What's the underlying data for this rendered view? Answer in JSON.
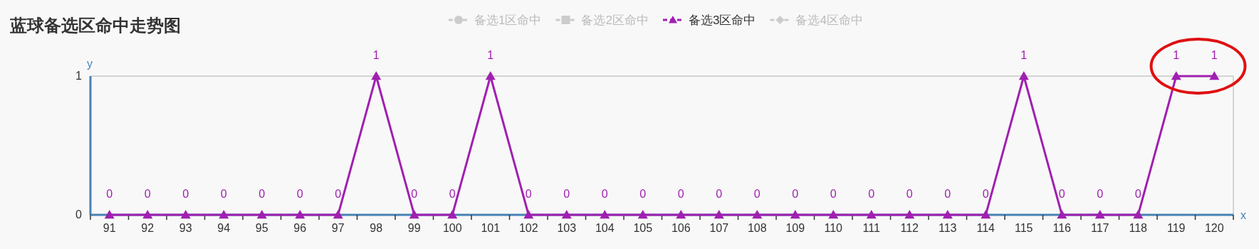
{
  "chart_data": {
    "type": "line",
    "title": "蓝球备选区命中走势图",
    "xlabel": "x",
    "ylabel": "y",
    "categories": [
      "91",
      "92",
      "93",
      "94",
      "95",
      "96",
      "97",
      "98",
      "99",
      "100",
      "101",
      "102",
      "103",
      "104",
      "105",
      "106",
      "107",
      "108",
      "109",
      "110",
      "111",
      "112",
      "113",
      "114",
      "115",
      "116",
      "117",
      "118",
      "119",
      "120"
    ],
    "series": [
      {
        "name": "备选1区命中",
        "color": "#cccccc",
        "marker": "circle",
        "values": [
          null,
          null,
          null,
          null,
          null,
          null,
          null,
          null,
          null,
          null,
          null,
          null,
          null,
          null,
          null,
          null,
          null,
          null,
          null,
          null,
          null,
          null,
          null,
          null,
          null,
          null,
          null,
          null,
          null,
          null
        ]
      },
      {
        "name": "备选2区命中",
        "color": "#cccccc",
        "marker": "square",
        "values": [
          null,
          null,
          null,
          null,
          null,
          null,
          null,
          null,
          null,
          null,
          null,
          null,
          null,
          null,
          null,
          null,
          null,
          null,
          null,
          null,
          null,
          null,
          null,
          null,
          null,
          null,
          null,
          null,
          null,
          null
        ]
      },
      {
        "name": "备选3区命中",
        "color": "#a020b0",
        "marker": "triangle",
        "values": [
          0,
          0,
          0,
          0,
          0,
          0,
          0,
          1,
          0,
          0,
          1,
          0,
          0,
          0,
          0,
          0,
          0,
          0,
          0,
          0,
          0,
          0,
          0,
          0,
          1,
          0,
          0,
          0,
          1,
          1
        ]
      },
      {
        "name": "备选4区命中",
        "color": "#cccccc",
        "marker": "diamond",
        "values": [
          null,
          null,
          null,
          null,
          null,
          null,
          null,
          null,
          null,
          null,
          null,
          null,
          null,
          null,
          null,
          null,
          null,
          null,
          null,
          null,
          null,
          null,
          null,
          null,
          null,
          null,
          null,
          null,
          null,
          null
        ]
      }
    ],
    "ylim": [
      0,
      1
    ],
    "yticks": [
      0,
      1
    ],
    "data_labels": true,
    "legend": "top",
    "line_style": "solid"
  }
}
